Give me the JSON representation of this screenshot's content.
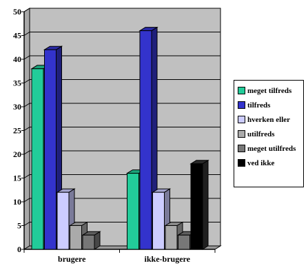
{
  "chart_data": {
    "type": "bar",
    "categories": [
      "brugere",
      "ikke-brugere"
    ],
    "series": [
      {
        "name": "meget tilfreds",
        "color": "#22cc99",
        "values": [
          38,
          16
        ]
      },
      {
        "name": "tilfreds",
        "color": "#3333cc",
        "values": [
          42,
          46
        ]
      },
      {
        "name": "hverken eller",
        "color": "#ccccff",
        "values": [
          12,
          12
        ]
      },
      {
        "name": "utilfreds",
        "color": "#aaaaaa",
        "values": [
          5,
          5
        ]
      },
      {
        "name": "meget utilfreds",
        "color": "#777777",
        "values": [
          3,
          3
        ]
      },
      {
        "name": "ved ikke",
        "color": "#000000",
        "values": [
          null,
          18
        ]
      }
    ],
    "yticks": [
      "0",
      "5",
      "10",
      "15",
      "20",
      "25",
      "30",
      "35",
      "40",
      "45",
      "50"
    ],
    "ylim": [
      0,
      50
    ],
    "grid": true,
    "three_d": true,
    "plot_background": "#c0c0c0",
    "legend_position": "right"
  }
}
